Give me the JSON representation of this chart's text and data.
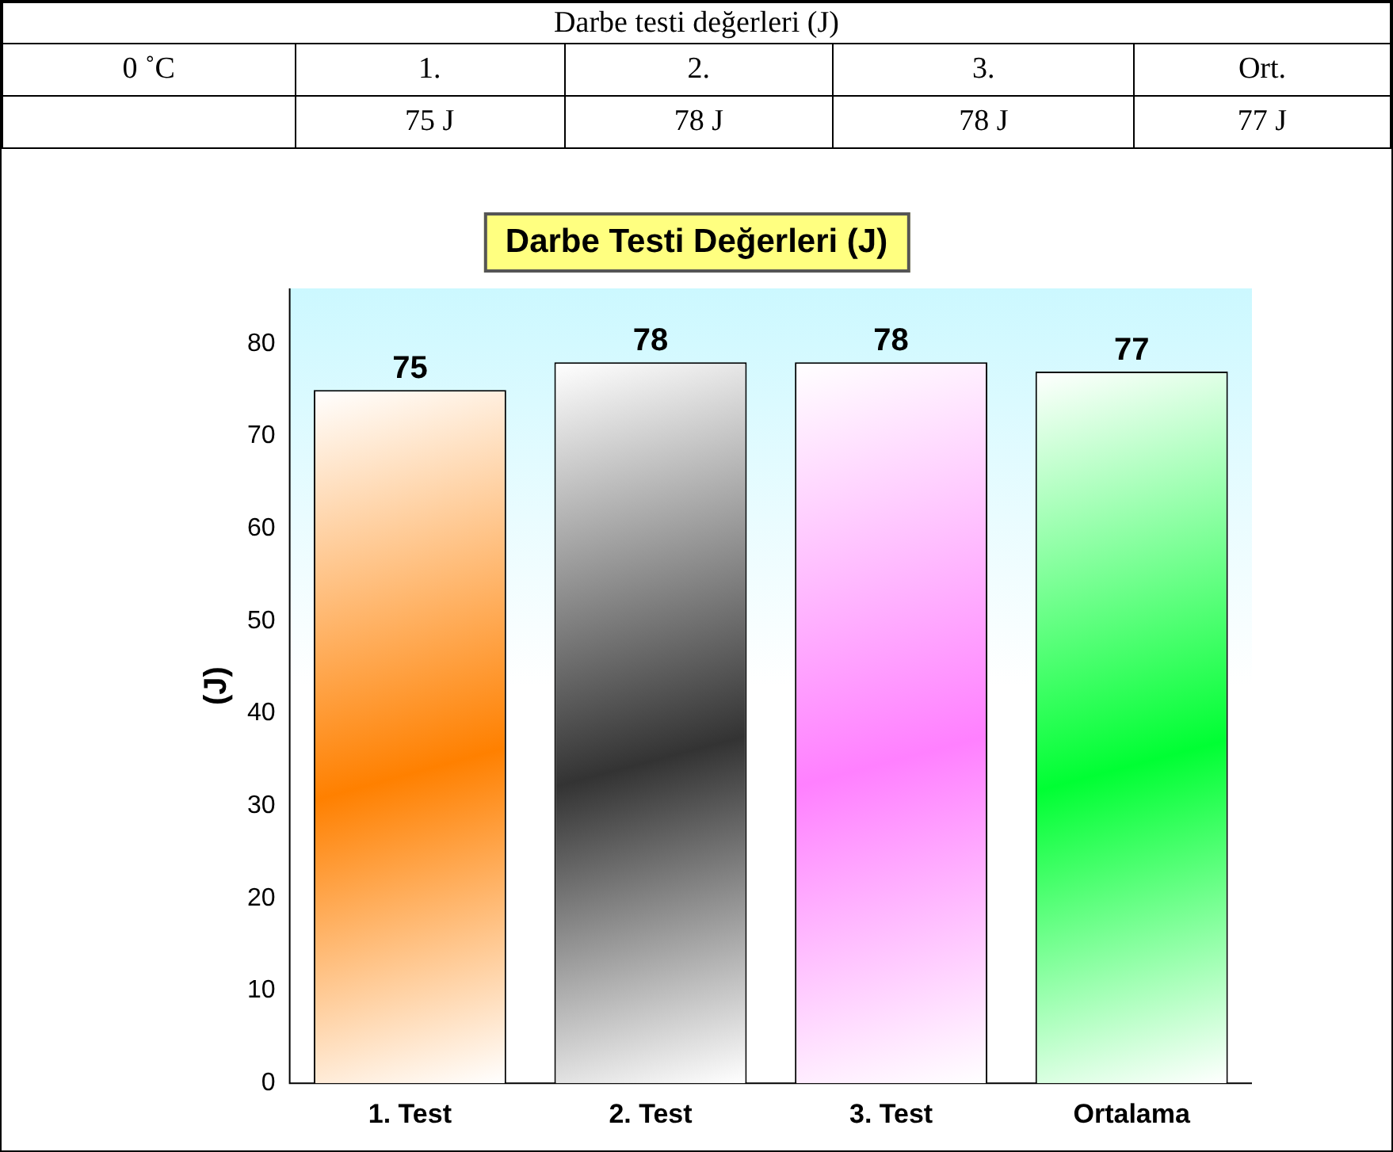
{
  "chart_data": {
    "type": "bar",
    "title": "Darbe Testi Değerleri (J)",
    "ylabel": "(J)",
    "categories": [
      "1. Test",
      "2. Test",
      "3. Test",
      "Ortalama"
    ],
    "values": [
      75,
      78,
      78,
      77
    ],
    "colors": [
      "#ff8000",
      "#333333",
      "#ff80ff",
      "#00ff33"
    ],
    "ylim": [
      0,
      86
    ],
    "yticks": [
      0,
      10,
      20,
      30,
      40,
      50,
      60,
      70,
      80
    ],
    "grid": false,
    "legend": false,
    "data_labels": true,
    "annotations": [
      "Darbe testi değerleri (J)",
      "0 ˚C",
      "1.",
      "2.",
      "3.",
      "Ort.",
      "75 J",
      "78 J",
      "78 J",
      "77 J"
    ]
  }
}
